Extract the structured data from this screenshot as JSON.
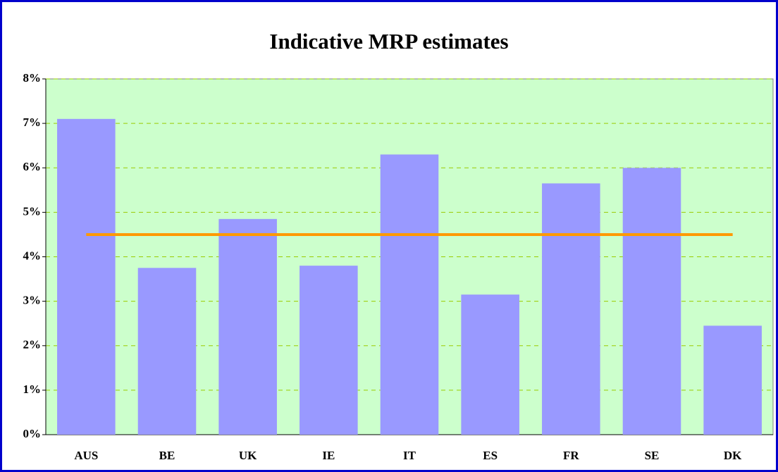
{
  "chart_data": {
    "type": "bar",
    "title": "Indicative MRP estimates",
    "categories": [
      "AUS",
      "BE",
      "UK",
      "IE",
      "IT",
      "ES",
      "FR",
      "SE",
      "DK"
    ],
    "series": [
      {
        "type": "bar",
        "color": "#9999ff",
        "values": [
          7.1,
          3.75,
          4.85,
          3.8,
          6.3,
          3.15,
          5.65,
          6.0,
          2.45
        ]
      },
      {
        "type": "line",
        "color": "#ff9900",
        "values": [
          4.5,
          4.5,
          4.5,
          4.5,
          4.5,
          4.5,
          4.5,
          4.5,
          4.5
        ]
      }
    ],
    "ylim": [
      0,
      8
    ],
    "yticks": [
      {
        "value": 0,
        "label": "0%"
      },
      {
        "value": 1,
        "label": "1%"
      },
      {
        "value": 2,
        "label": "2%"
      },
      {
        "value": 3,
        "label": "3%"
      },
      {
        "value": 4,
        "label": "4%"
      },
      {
        "value": 5,
        "label": "5%"
      },
      {
        "value": 6,
        "label": "6%"
      },
      {
        "value": 7,
        "label": "7%"
      },
      {
        "value": 8,
        "label": "8%"
      }
    ],
    "grid": true,
    "plot_background": "#ccffcc"
  }
}
